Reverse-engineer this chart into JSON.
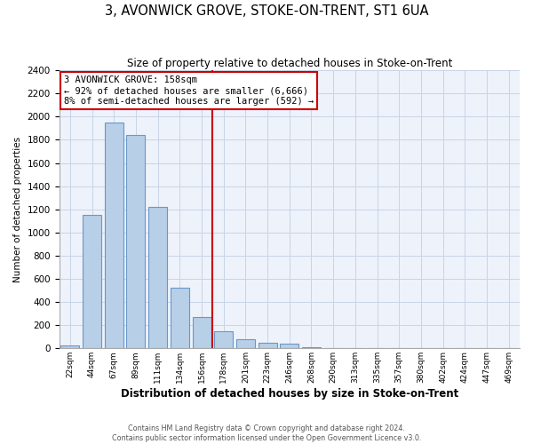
{
  "title": "3, AVONWICK GROVE, STOKE-ON-TRENT, ST1 6UA",
  "subtitle": "Size of property relative to detached houses in Stoke-on-Trent",
  "xlabel": "Distribution of detached houses by size in Stoke-on-Trent",
  "ylabel": "Number of detached properties",
  "bar_labels": [
    "22sqm",
    "44sqm",
    "67sqm",
    "89sqm",
    "111sqm",
    "134sqm",
    "156sqm",
    "178sqm",
    "201sqm",
    "223sqm",
    "246sqm",
    "268sqm",
    "290sqm",
    "313sqm",
    "335sqm",
    "357sqm",
    "380sqm",
    "402sqm",
    "424sqm",
    "447sqm",
    "469sqm"
  ],
  "bar_values": [
    25,
    1150,
    1950,
    1840,
    1220,
    520,
    270,
    150,
    80,
    50,
    40,
    10,
    5,
    2,
    1,
    0,
    0,
    0,
    0,
    0,
    0
  ],
  "bar_color": "#b8cfe8",
  "bar_edge_color": "#6898c8",
  "vline_x": 6.5,
  "vline_color": "#cc0000",
  "ylim": [
    0,
    2400
  ],
  "yticks": [
    0,
    200,
    400,
    600,
    800,
    1000,
    1200,
    1400,
    1600,
    1800,
    2000,
    2200,
    2400
  ],
  "annotation_title": "3 AVONWICK GROVE: 158sqm",
  "annotation_line1": "← 92% of detached houses are smaller (6,666)",
  "annotation_line2": "8% of semi-detached houses are larger (592) →",
  "footer1": "Contains HM Land Registry data © Crown copyright and database right 2024.",
  "footer2": "Contains public sector information licensed under the Open Government Licence v3.0.",
  "bg_color": "#eef2fa",
  "grid_color": "#c8d4e8"
}
